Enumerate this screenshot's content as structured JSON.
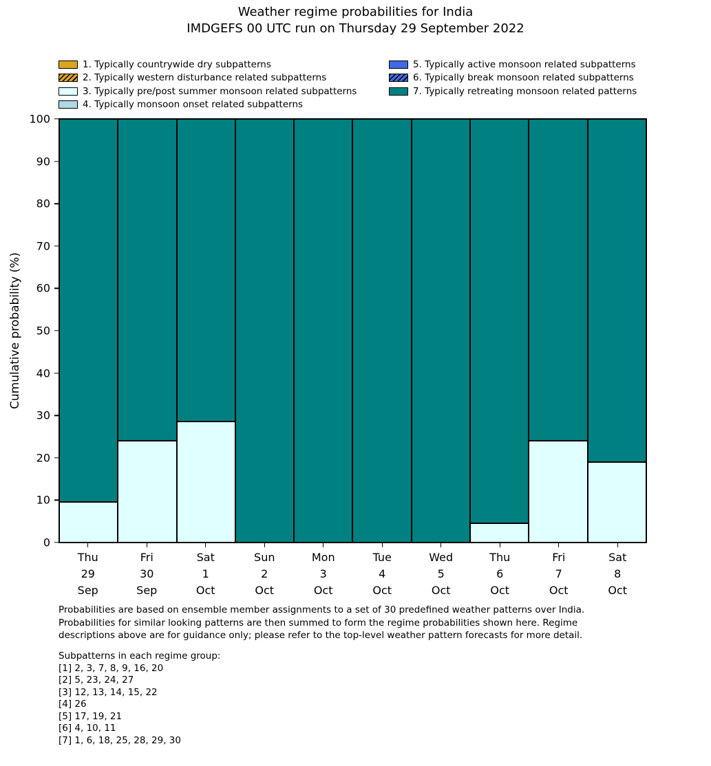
{
  "title": {
    "line1": "Weather regime probabilities for India",
    "line2": "IMDGEFS 00 UTC run on Thursday 29 September 2022"
  },
  "legend": {
    "items": [
      {
        "label": "1. Typically countrywide dry subpatterns",
        "color": "#DAA520",
        "hatch": false
      },
      {
        "label": "2. Typically western disturbance related subpatterns",
        "color": "#DAA520",
        "hatch": true
      },
      {
        "label": "3. Typically pre/post summer monsoon related subpatterns",
        "color": "#E0FFFF",
        "hatch": false
      },
      {
        "label": "4. Typically monsoon onset related subpatterns",
        "color": "#ADD8E6",
        "hatch": false
      },
      {
        "label": "5. Typically active monsoon related subpatterns",
        "color": "#4169E1",
        "hatch": false
      },
      {
        "label": "6. Typically break monsoon related subpatterns",
        "color": "#4169E1",
        "hatch": true
      },
      {
        "label": "7. Typically retreating monsoon related patterns",
        "color": "#008080",
        "hatch": false
      }
    ]
  },
  "chart_data": {
    "type": "bar",
    "stacked": true,
    "title": "Weather regime probabilities for India",
    "subtitle": "IMDGEFS 00 UTC run on Thursday 29 September 2022",
    "xlabel": "",
    "ylabel": "Cumulative probability (%)",
    "ylim": [
      0,
      100
    ],
    "yticks": [
      0,
      10,
      20,
      30,
      40,
      50,
      60,
      70,
      80,
      90,
      100
    ],
    "grid": false,
    "legend_position": "top",
    "bar_edge_color": "#000000",
    "categories": [
      "Thu 29 Sep",
      "Fri 30 Sep",
      "Sat 1 Oct",
      "Sun 2 Oct",
      "Mon 3 Oct",
      "Tue 4 Oct",
      "Wed 5 Oct",
      "Thu 6 Oct",
      "Fri 7 Oct",
      "Sat 8 Oct"
    ],
    "category_labels": [
      [
        "Thu",
        "29",
        "Sep"
      ],
      [
        "Fri",
        "30",
        "Sep"
      ],
      [
        "Sat",
        "1",
        "Oct"
      ],
      [
        "Sun",
        "2",
        "Oct"
      ],
      [
        "Mon",
        "3",
        "Oct"
      ],
      [
        "Tue",
        "4",
        "Oct"
      ],
      [
        "Wed",
        "5",
        "Oct"
      ],
      [
        "Thu",
        "6",
        "Oct"
      ],
      [
        "Fri",
        "7",
        "Oct"
      ],
      [
        "Sat",
        "8",
        "Oct"
      ]
    ],
    "series": [
      {
        "name": "1. Typically countrywide dry subpatterns",
        "color": "#DAA520",
        "hatch": false,
        "values": [
          0,
          0,
          0,
          0,
          0,
          0,
          0,
          0,
          0,
          0
        ]
      },
      {
        "name": "2. Typically western disturbance related subpatterns",
        "color": "#DAA520",
        "hatch": true,
        "values": [
          0,
          0,
          0,
          0,
          0,
          0,
          0,
          0,
          0,
          0
        ]
      },
      {
        "name": "3. Typically pre/post summer monsoon related subpatterns",
        "color": "#E0FFFF",
        "hatch": false,
        "values": [
          9.5,
          24,
          28.5,
          0,
          0,
          0,
          0,
          4.5,
          24,
          19
        ]
      },
      {
        "name": "4. Typically monsoon onset related subpatterns",
        "color": "#ADD8E6",
        "hatch": false,
        "values": [
          0,
          0,
          0,
          0,
          0,
          0,
          0,
          0,
          0,
          0
        ]
      },
      {
        "name": "5. Typically active monsoon related subpatterns",
        "color": "#4169E1",
        "hatch": false,
        "values": [
          0,
          0,
          0,
          0,
          0,
          0,
          0,
          0,
          0,
          0
        ]
      },
      {
        "name": "6. Typically break monsoon related subpatterns",
        "color": "#4169E1",
        "hatch": true,
        "values": [
          0,
          0,
          0,
          0,
          0,
          0,
          0,
          0,
          0,
          0
        ]
      },
      {
        "name": "7. Typically retreating monsoon related patterns",
        "color": "#008080",
        "hatch": false,
        "values": [
          90.5,
          76,
          71.5,
          100,
          100,
          100,
          100,
          95.5,
          76,
          81
        ]
      }
    ]
  },
  "footnote": {
    "lines": [
      "Probabilities are based on ensemble member assignments to a set of 30 predefined weather patterns over India.",
      "Probabilities for similar looking patterns are then summed to form the regime probabilities shown here. Regime",
      "descriptions above are for guidance only; please refer to the top-level weather pattern forecasts for more detail."
    ]
  },
  "subpatterns": {
    "heading": "Subpatterns in each regime group:",
    "lines": [
      "[1] 2, 3, 7, 8, 9, 16, 20",
      "[2] 5, 23, 24, 27",
      "[3] 12, 13, 14, 15, 22",
      "[4] 26",
      "[5] 17, 19, 21",
      "[6] 4, 10, 11",
      "[7] 1, 6, 18, 25, 28, 29, 30"
    ]
  }
}
